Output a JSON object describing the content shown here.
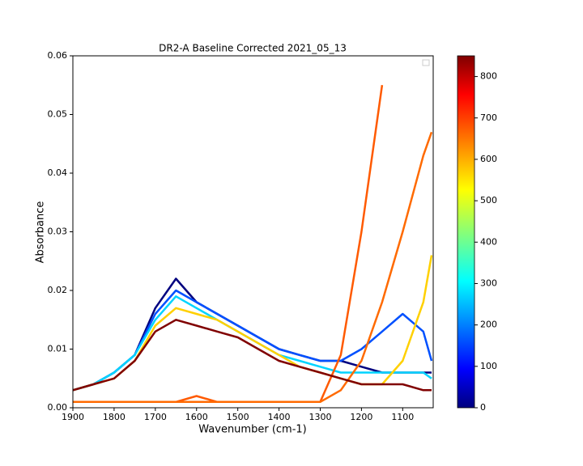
{
  "chart_data": {
    "type": "line",
    "title": "DR2-A Baseline Corrected 2021_05_13",
    "x_label": "Wavenumber (cm-1)",
    "y_label": "Absorbance",
    "x": [
      1900,
      1850,
      1800,
      1750,
      1700,
      1650,
      1600,
      1550,
      1500,
      1450,
      1400,
      1350,
      1300,
      1250,
      1200,
      1150,
      1100,
      1050,
      1030
    ],
    "xlim": [
      1900,
      1026
    ],
    "xticks": [
      1900,
      1800,
      1700,
      1600,
      1500,
      1400,
      1300,
      1200,
      1100
    ],
    "ylim": [
      0,
      0.06
    ],
    "yticks": [
      {
        "value": 0,
        "label": "0.00"
      },
      0.01,
      0.02,
      0.03,
      0.04,
      0.05,
      0.06
    ],
    "series": [
      {
        "color": "#00007f",
        "values": [
          0.003,
          0.004,
          0.006,
          0.009,
          0.017,
          0.022,
          0.018,
          0.016,
          0.014,
          0.012,
          0.01,
          0.009,
          0.008,
          0.008,
          0.007,
          0.006,
          0.006,
          0.006,
          0.006
        ]
      },
      {
        "color": "#0050ff",
        "values": [
          0.003,
          0.004,
          0.006,
          0.009,
          0.016,
          0.02,
          0.018,
          0.016,
          0.014,
          0.012,
          0.01,
          0.009,
          0.008,
          0.008,
          0.01,
          0.013,
          0.016,
          0.013,
          0.008
        ]
      },
      {
        "color": "#00d4ff",
        "values": [
          0.003,
          0.004,
          0.006,
          0.009,
          0.015,
          0.019,
          0.017,
          0.015,
          0.013,
          0.011,
          0.009,
          0.008,
          0.007,
          0.006,
          0.006,
          0.006,
          0.006,
          0.006,
          0.005
        ]
      },
      {
        "color": "#ffd000",
        "values": [
          0.003,
          0.004,
          0.005,
          0.008,
          0.014,
          0.017,
          0.016,
          0.015,
          0.013,
          0.011,
          0.009,
          0.007,
          0.006,
          0.005,
          0.004,
          0.004,
          0.008,
          0.018,
          0.026
        ]
      },
      {
        "color": "#ff5a00",
        "values": [
          0.001,
          0.001,
          0.001,
          0.001,
          0.001,
          0.001,
          0.002,
          0.001,
          0.001,
          0.001,
          0.001,
          0.001,
          0.001,
          0.009,
          0.03,
          0.055,
          null,
          null,
          null
        ]
      },
      {
        "color": "#ff6a00",
        "values": [
          0.001,
          0.001,
          0.001,
          0.001,
          0.001,
          0.001,
          0.001,
          0.001,
          0.001,
          0.001,
          0.001,
          0.001,
          0.001,
          0.003,
          0.008,
          0.018,
          0.03,
          0.043,
          0.047
        ]
      },
      {
        "color": "#800000",
        "values": [
          0.003,
          0.004,
          0.005,
          0.008,
          0.013,
          0.015,
          0.014,
          0.013,
          0.012,
          0.01,
          0.008,
          0.007,
          0.006,
          0.005,
          0.004,
          0.004,
          0.004,
          0.003,
          0.003
        ]
      }
    ],
    "colorbar": {
      "clim": [
        0,
        850
      ],
      "ticks": [
        0,
        100,
        200,
        300,
        400,
        500,
        600,
        700,
        800
      ]
    }
  }
}
